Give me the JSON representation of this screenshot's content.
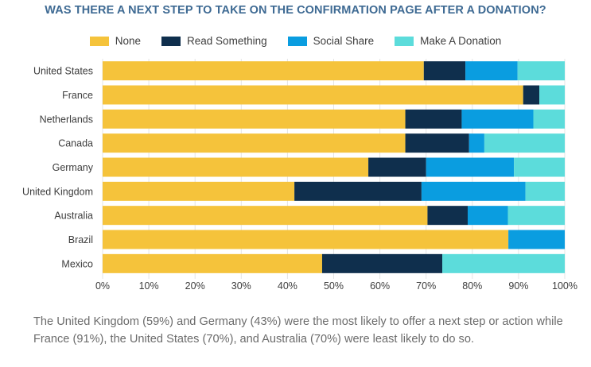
{
  "chart_data": {
    "type": "bar",
    "orientation": "horizontal",
    "stacked": true,
    "title": "WAS THERE A NEXT STEP TO TAKE ON THE CONFIRMATION PAGE AFTER A DONATION?",
    "categories": [
      "United States",
      "France",
      "Netherlands",
      "Canada",
      "Germany",
      "United Kingdom",
      "Australia",
      "Brazil",
      "Mexico"
    ],
    "series": [
      {
        "name": "None",
        "color": "#f5c33b",
        "values": [
          69.5,
          91,
          65.5,
          65.5,
          57.5,
          41.5,
          70.3,
          87.8,
          47.5
        ]
      },
      {
        "name": "Read Something",
        "color": "#0f2f4d",
        "values": [
          9,
          3.5,
          12.2,
          13.8,
          12.5,
          27.5,
          8.7,
          0,
          26
        ]
      },
      {
        "name": "Social Share",
        "color": "#0a9de0",
        "values": [
          11.3,
          0,
          15.5,
          3.3,
          19,
          22.5,
          8.7,
          12.2,
          0
        ]
      },
      {
        "name": "Make A Donation",
        "color": "#5cdcdb",
        "values": [
          10.2,
          5.5,
          6.8,
          17.4,
          11,
          8.5,
          12.3,
          0,
          26.5
        ]
      }
    ],
    "x_ticks": [
      "0%",
      "10%",
      "20%",
      "30%",
      "40%",
      "50%",
      "60%",
      "70%",
      "80%",
      "90%",
      "100%"
    ],
    "xlim": [
      0,
      100
    ],
    "grid": true,
    "legend_position": "top-center"
  },
  "colors": {
    "title": "#3e6a93",
    "axis_text": "#3d3d3d",
    "grid": "#e4e4e4",
    "caption": "#6b6b6b"
  },
  "caption": "The United Kingdom (59%) and Germany (43%) were the most likely to offer a next step or action while France (91%), the United States (70%), and Australia (70%) were least likely to do so."
}
